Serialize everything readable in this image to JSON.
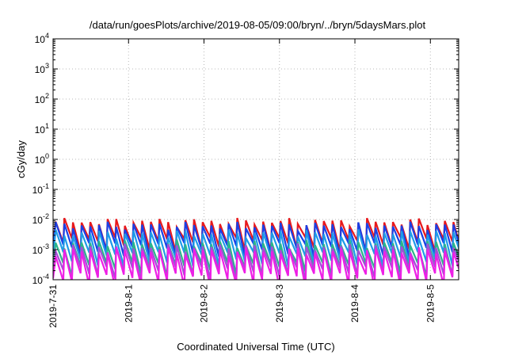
{
  "chart_data": {
    "type": "line",
    "title": "/data/run/goesPlots/archive/2019-08-05/09:00/bryn/../bryn/5daysMars.plot",
    "xlabel": "Coordinated Universal Time (UTC)",
    "ylabel": "cGy/day",
    "yscale": "log",
    "ylim": [
      0.0001,
      10000
    ],
    "y_ticks": [
      {
        "base": "10",
        "exp": "-4"
      },
      {
        "base": "10",
        "exp": "-3"
      },
      {
        "base": "10",
        "exp": "-2"
      },
      {
        "base": "10",
        "exp": "-1"
      },
      {
        "base": "10",
        "exp": "0"
      },
      {
        "base": "10",
        "exp": "1"
      },
      {
        "base": "10",
        "exp": "2"
      },
      {
        "base": "10",
        "exp": "3"
      },
      {
        "base": "10",
        "exp": "4"
      }
    ],
    "xlim": [
      "2019-07-31",
      "2019-08-05 09:00"
    ],
    "x_ticks": [
      "2019-7-31",
      "2019-8-1",
      "2019-8-2",
      "2019-8-3",
      "2019-8-4",
      "2019-8-5"
    ],
    "grid": true,
    "legend": "none",
    "series": [
      {
        "color": "#e8191c",
        "peak": 0.0085,
        "trough": 0.0017,
        "period_hours": 2.75,
        "start": "2019-07-31 00:30"
      },
      {
        "color": "#1a40e6",
        "peak": 0.0064,
        "trough": 0.0011,
        "period_hours": 2.75,
        "start": "2019-07-31 00:30"
      },
      {
        "color": "#1e9be8",
        "peak": 0.0035,
        "trough": 0.00055,
        "period_hours": 2.75,
        "start": "2019-07-31 00:30"
      },
      {
        "color": "#2bb58a",
        "peak": 0.0016,
        "trough": 0.00025,
        "period_hours": 2.75,
        "start": "2019-07-31 00:30"
      },
      {
        "color": "#a24fd6",
        "peak": 0.0012,
        "trough": 0.00018,
        "period_hours": 2.75,
        "start": "2019-07-31 00:30"
      },
      {
        "color": "#ee1fe6",
        "peak": 0.0009,
        "trough": 0.00011,
        "period_hours": 2.75,
        "start": "2019-07-31 00:30"
      }
    ]
  }
}
